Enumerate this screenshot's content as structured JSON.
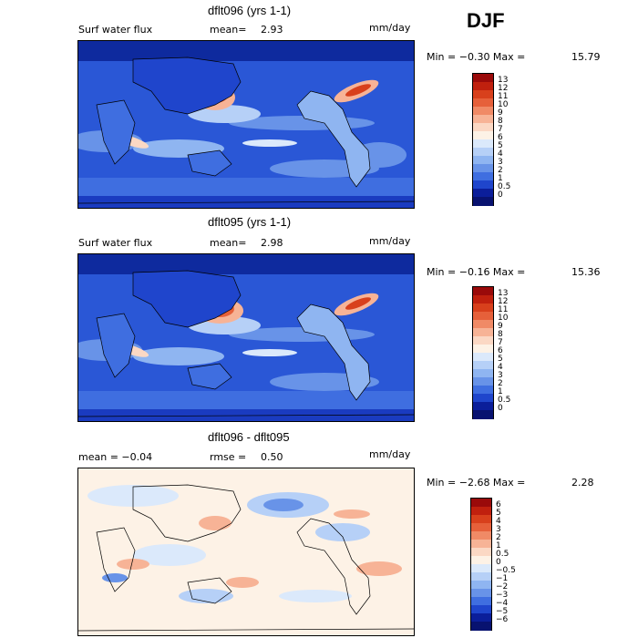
{
  "season": "DJF",
  "panels": [
    {
      "title": "dflt096 (yrs 1-1)",
      "left_label": "Surf water flux",
      "mean_label": "mean=",
      "mean_value": "2.93",
      "units": "mm/day",
      "minmax": "Min = −0.30 Max =",
      "max_value": "15.79",
      "colorbar": {
        "labels": [
          "13",
          "12",
          "11",
          "10",
          "9",
          "8",
          "7",
          "6",
          "5",
          "4",
          "3",
          "2",
          "1",
          "0.5",
          "0"
        ],
        "colors": [
          "#9a0a0a",
          "#c0200e",
          "#d8401c",
          "#e6603a",
          "#f08a66",
          "#f7b396",
          "#fbd8c4",
          "#fdf2e6",
          "#dbe9fb",
          "#b6d0f7",
          "#8fb5f1",
          "#6893e8",
          "#3f6ee0",
          "#1f45cc",
          "#0b1e9a",
          "#081270"
        ]
      }
    },
    {
      "title": "dflt095 (yrs 1-1)",
      "left_label": "Surf water flux",
      "mean_label": "mean=",
      "mean_value": "2.98",
      "units": "mm/day",
      "minmax": "Min = −0.16 Max =",
      "max_value": "15.36",
      "colorbar": {
        "labels": [
          "13",
          "12",
          "11",
          "10",
          "9",
          "8",
          "7",
          "6",
          "5",
          "4",
          "3",
          "2",
          "1",
          "0.5",
          "0"
        ],
        "colors": [
          "#9a0a0a",
          "#c0200e",
          "#d8401c",
          "#e6603a",
          "#f08a66",
          "#f7b396",
          "#fbd8c4",
          "#fdf2e6",
          "#dbe9fb",
          "#b6d0f7",
          "#8fb5f1",
          "#6893e8",
          "#3f6ee0",
          "#1f45cc",
          "#0b1e9a",
          "#081270"
        ]
      }
    },
    {
      "title": "dflt096 - dflt095",
      "left_label": "mean =  −0.04",
      "mean_label": "rmse =",
      "mean_value": "0.50",
      "units": "mm/day",
      "minmax": "Min = −2.68 Max =",
      "max_value": "2.28",
      "colorbar": {
        "labels": [
          "6",
          "5",
          "4",
          "3",
          "2",
          "1",
          "0.5",
          "0",
          "−0.5",
          "−1",
          "−2",
          "−3",
          "−4",
          "−5",
          "−6"
        ],
        "colors": [
          "#9a0a0a",
          "#c0200e",
          "#d8401c",
          "#e6603a",
          "#f08a66",
          "#f7b396",
          "#fbd8c4",
          "#fdf2e6",
          "#dbe9fb",
          "#b6d0f7",
          "#8fb5f1",
          "#6893e8",
          "#3f6ee0",
          "#1f45cc",
          "#0b1e9a",
          "#081270"
        ]
      }
    }
  ],
  "chart_data": [
    {
      "type": "heatmap",
      "title": "dflt096 (yrs 1-1)",
      "field": "Surf water flux",
      "units": "mm/day",
      "mean": 2.93,
      "min": -0.3,
      "max": 15.79,
      "contour_levels": [
        0,
        0.5,
        1,
        2,
        3,
        4,
        5,
        6,
        7,
        8,
        9,
        10,
        11,
        12,
        13
      ]
    },
    {
      "type": "heatmap",
      "title": "dflt095 (yrs 1-1)",
      "field": "Surf water flux",
      "units": "mm/day",
      "mean": 2.98,
      "min": -0.16,
      "max": 15.36,
      "contour_levels": [
        0,
        0.5,
        1,
        2,
        3,
        4,
        5,
        6,
        7,
        8,
        9,
        10,
        11,
        12,
        13
      ]
    },
    {
      "type": "heatmap",
      "title": "dflt096 - dflt095",
      "units": "mm/day",
      "mean": -0.04,
      "rmse": 0.5,
      "min": -2.68,
      "max": 2.28,
      "contour_levels": [
        -6,
        -5,
        -4,
        -3,
        -2,
        -1,
        -0.5,
        0,
        0.5,
        1,
        2,
        3,
        4,
        5,
        6
      ]
    }
  ]
}
